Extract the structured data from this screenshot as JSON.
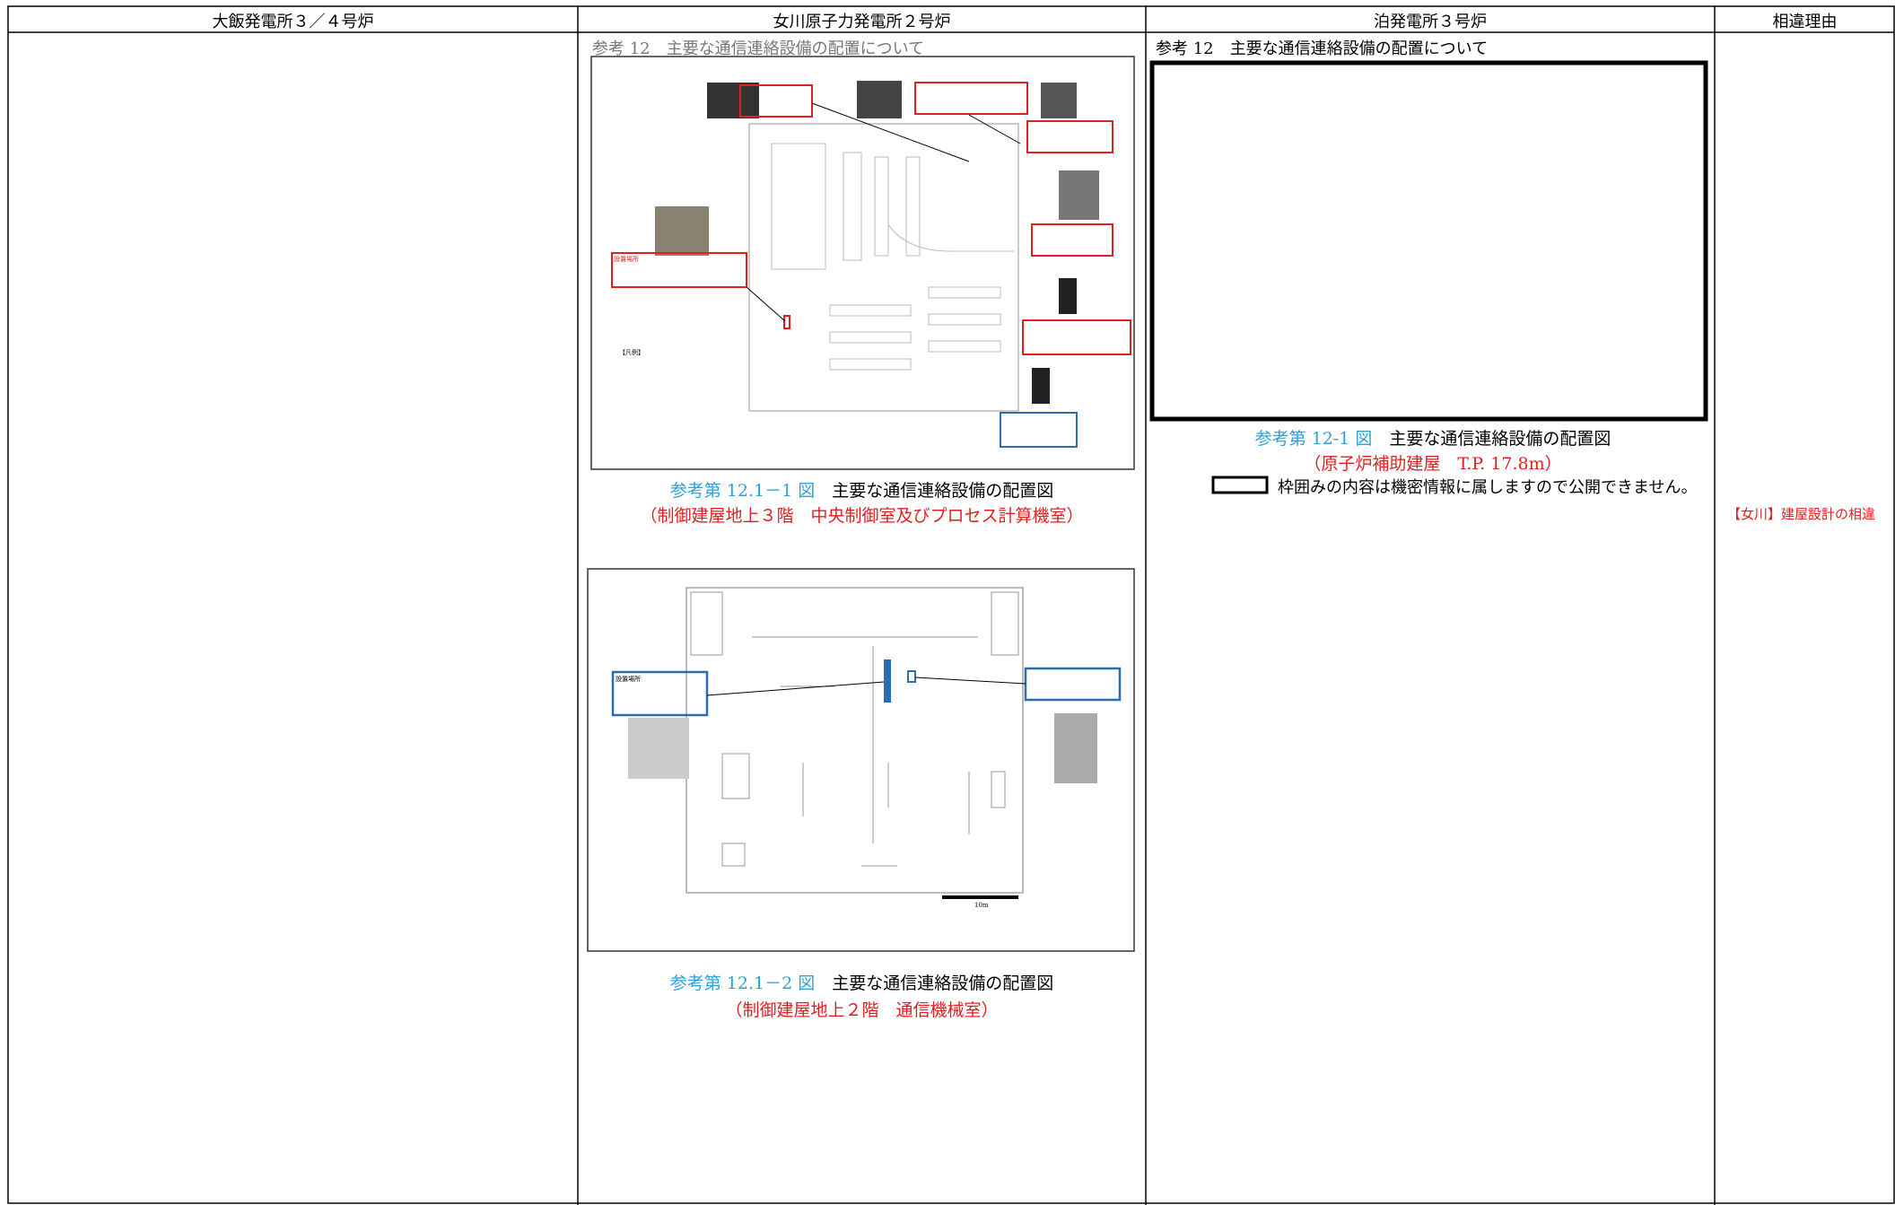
{
  "header": {
    "columns": [
      "大飯発電所３／４号炉",
      "女川原子力発電所２号炉",
      "泊発電所３号炉",
      "相違理由"
    ]
  },
  "onagawa": {
    "section_title": "参考 12　主要な通信連絡設備の配置について",
    "figure1": {
      "number": "参考第 12.1－1 図",
      "title": "主要な通信連絡設備の配置図",
      "subtitle": "（制御建屋地上３階　中央制御室及びプロセス計算機室）",
      "labels": [
        "設置場所",
        "【凡例】"
      ]
    },
    "figure2": {
      "number": "参考第 12.1－2 図",
      "title": "主要な通信連絡設備の配置図",
      "subtitle": "（制御建屋地上２階　通信機械室）",
      "labels": [
        "設置場所",
        "10m"
      ]
    }
  },
  "tomari": {
    "section_title": "参考 12　主要な通信連絡設備の配置について",
    "figure": {
      "number": "参考第 12-1 図",
      "title": "主要な通信連絡設備の配置図",
      "subtitle": "（原子炉補助建屋　T.P.  17.8m）"
    },
    "note": "枠囲みの内容は機密情報に属しますので公開できません。"
  },
  "reason": "【女川】建屋設計の相違"
}
